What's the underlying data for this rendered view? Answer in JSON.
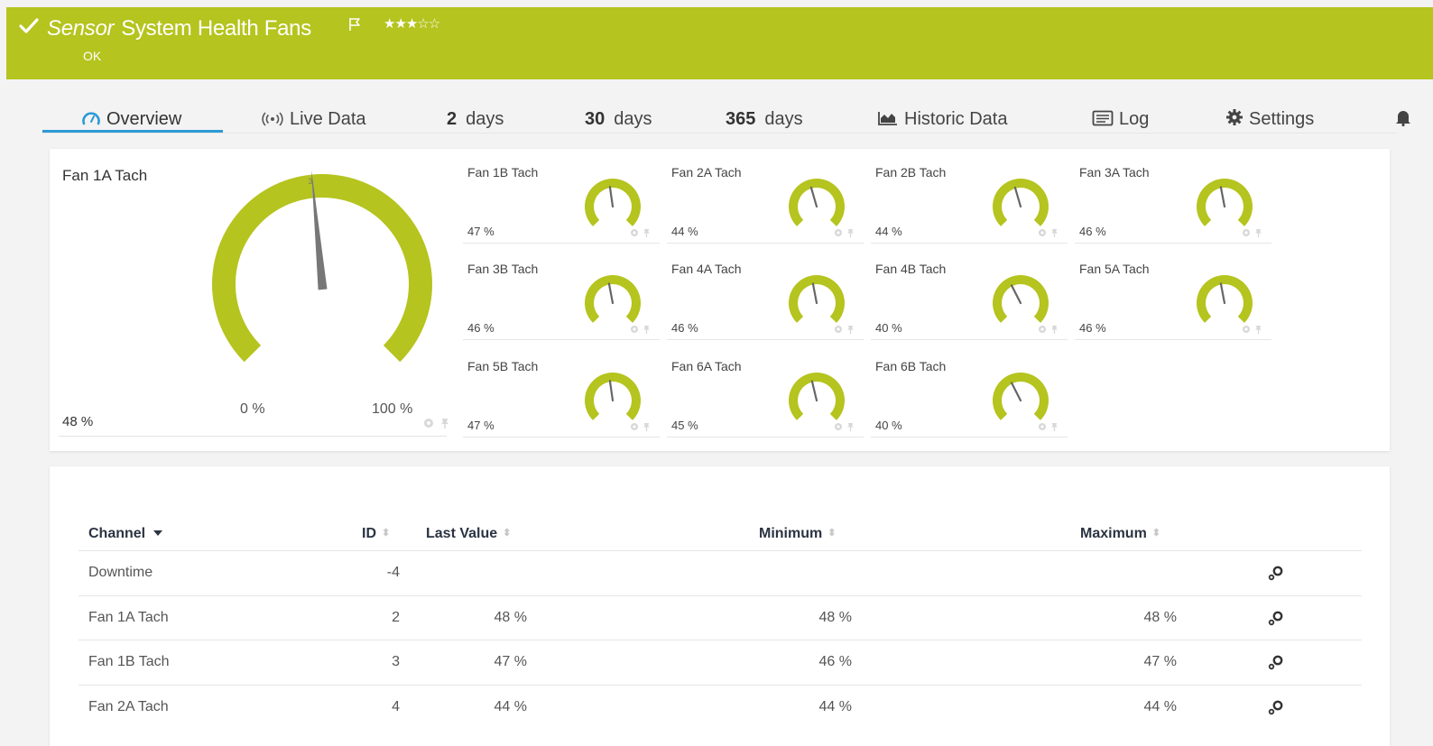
{
  "header": {
    "sensor_label": "Sensor",
    "title": "System Health Fans",
    "status": "OK",
    "stars": "★★★☆☆",
    "colors": {
      "header_bg": "#b5c41e",
      "accent": "#2c9ad6"
    }
  },
  "tabs": [
    {
      "label": "Overview",
      "icon": "gauge-icon"
    },
    {
      "label": "Live Data",
      "icon": "broadcast-icon"
    },
    {
      "number": "2",
      "label": "days"
    },
    {
      "number": "30",
      "label": "days"
    },
    {
      "number": "365",
      "label": "days"
    },
    {
      "label": "Historic Data",
      "icon": "area-chart-icon"
    },
    {
      "label": "Log",
      "icon": "log-icon"
    },
    {
      "label": "Settings",
      "icon": "gear-icon"
    }
  ],
  "main_gauge": {
    "name": "Fan 1A Tach",
    "value": "48 %",
    "min_label": "0 %",
    "max_label": "100 %",
    "needle_marker": "3",
    "level_percent": 48
  },
  "gauges": [
    {
      "name": "Fan 1B Tach",
      "value": "47 %",
      "level_percent": 47
    },
    {
      "name": "Fan 2A Tach",
      "value": "44 %",
      "level_percent": 44
    },
    {
      "name": "Fan 2B Tach",
      "value": "44 %",
      "level_percent": 44
    },
    {
      "name": "Fan 3A Tach",
      "value": "46 %",
      "level_percent": 46
    },
    {
      "name": "Fan 3B Tach",
      "value": "46 %",
      "level_percent": 46
    },
    {
      "name": "Fan 4A Tach",
      "value": "46 %",
      "level_percent": 46
    },
    {
      "name": "Fan 4B Tach",
      "value": "40 %",
      "level_percent": 40
    },
    {
      "name": "Fan 5A Tach",
      "value": "46 %",
      "level_percent": 46
    },
    {
      "name": "Fan 5B Tach",
      "value": "47 %",
      "level_percent": 47
    },
    {
      "name": "Fan 6A Tach",
      "value": "45 %",
      "level_percent": 45
    },
    {
      "name": "Fan 6B Tach",
      "value": "40 %",
      "level_percent": 40
    }
  ],
  "table": {
    "headers": {
      "channel": "Channel",
      "id": "ID",
      "last": "Last Value",
      "min": "Minimum",
      "max": "Maximum"
    },
    "rows": [
      {
        "channel": "Downtime",
        "id": "-4",
        "last": "",
        "min": "",
        "max": ""
      },
      {
        "channel": "Fan 1A Tach",
        "id": "2",
        "last": "48 %",
        "min": "48 %",
        "max": "48 %"
      },
      {
        "channel": "Fan 1B Tach",
        "id": "3",
        "last": "47 %",
        "min": "46 %",
        "max": "47 %"
      },
      {
        "channel": "Fan 2A Tach",
        "id": "4",
        "last": "44 %",
        "min": "44 %",
        "max": "44 %"
      }
    ]
  }
}
